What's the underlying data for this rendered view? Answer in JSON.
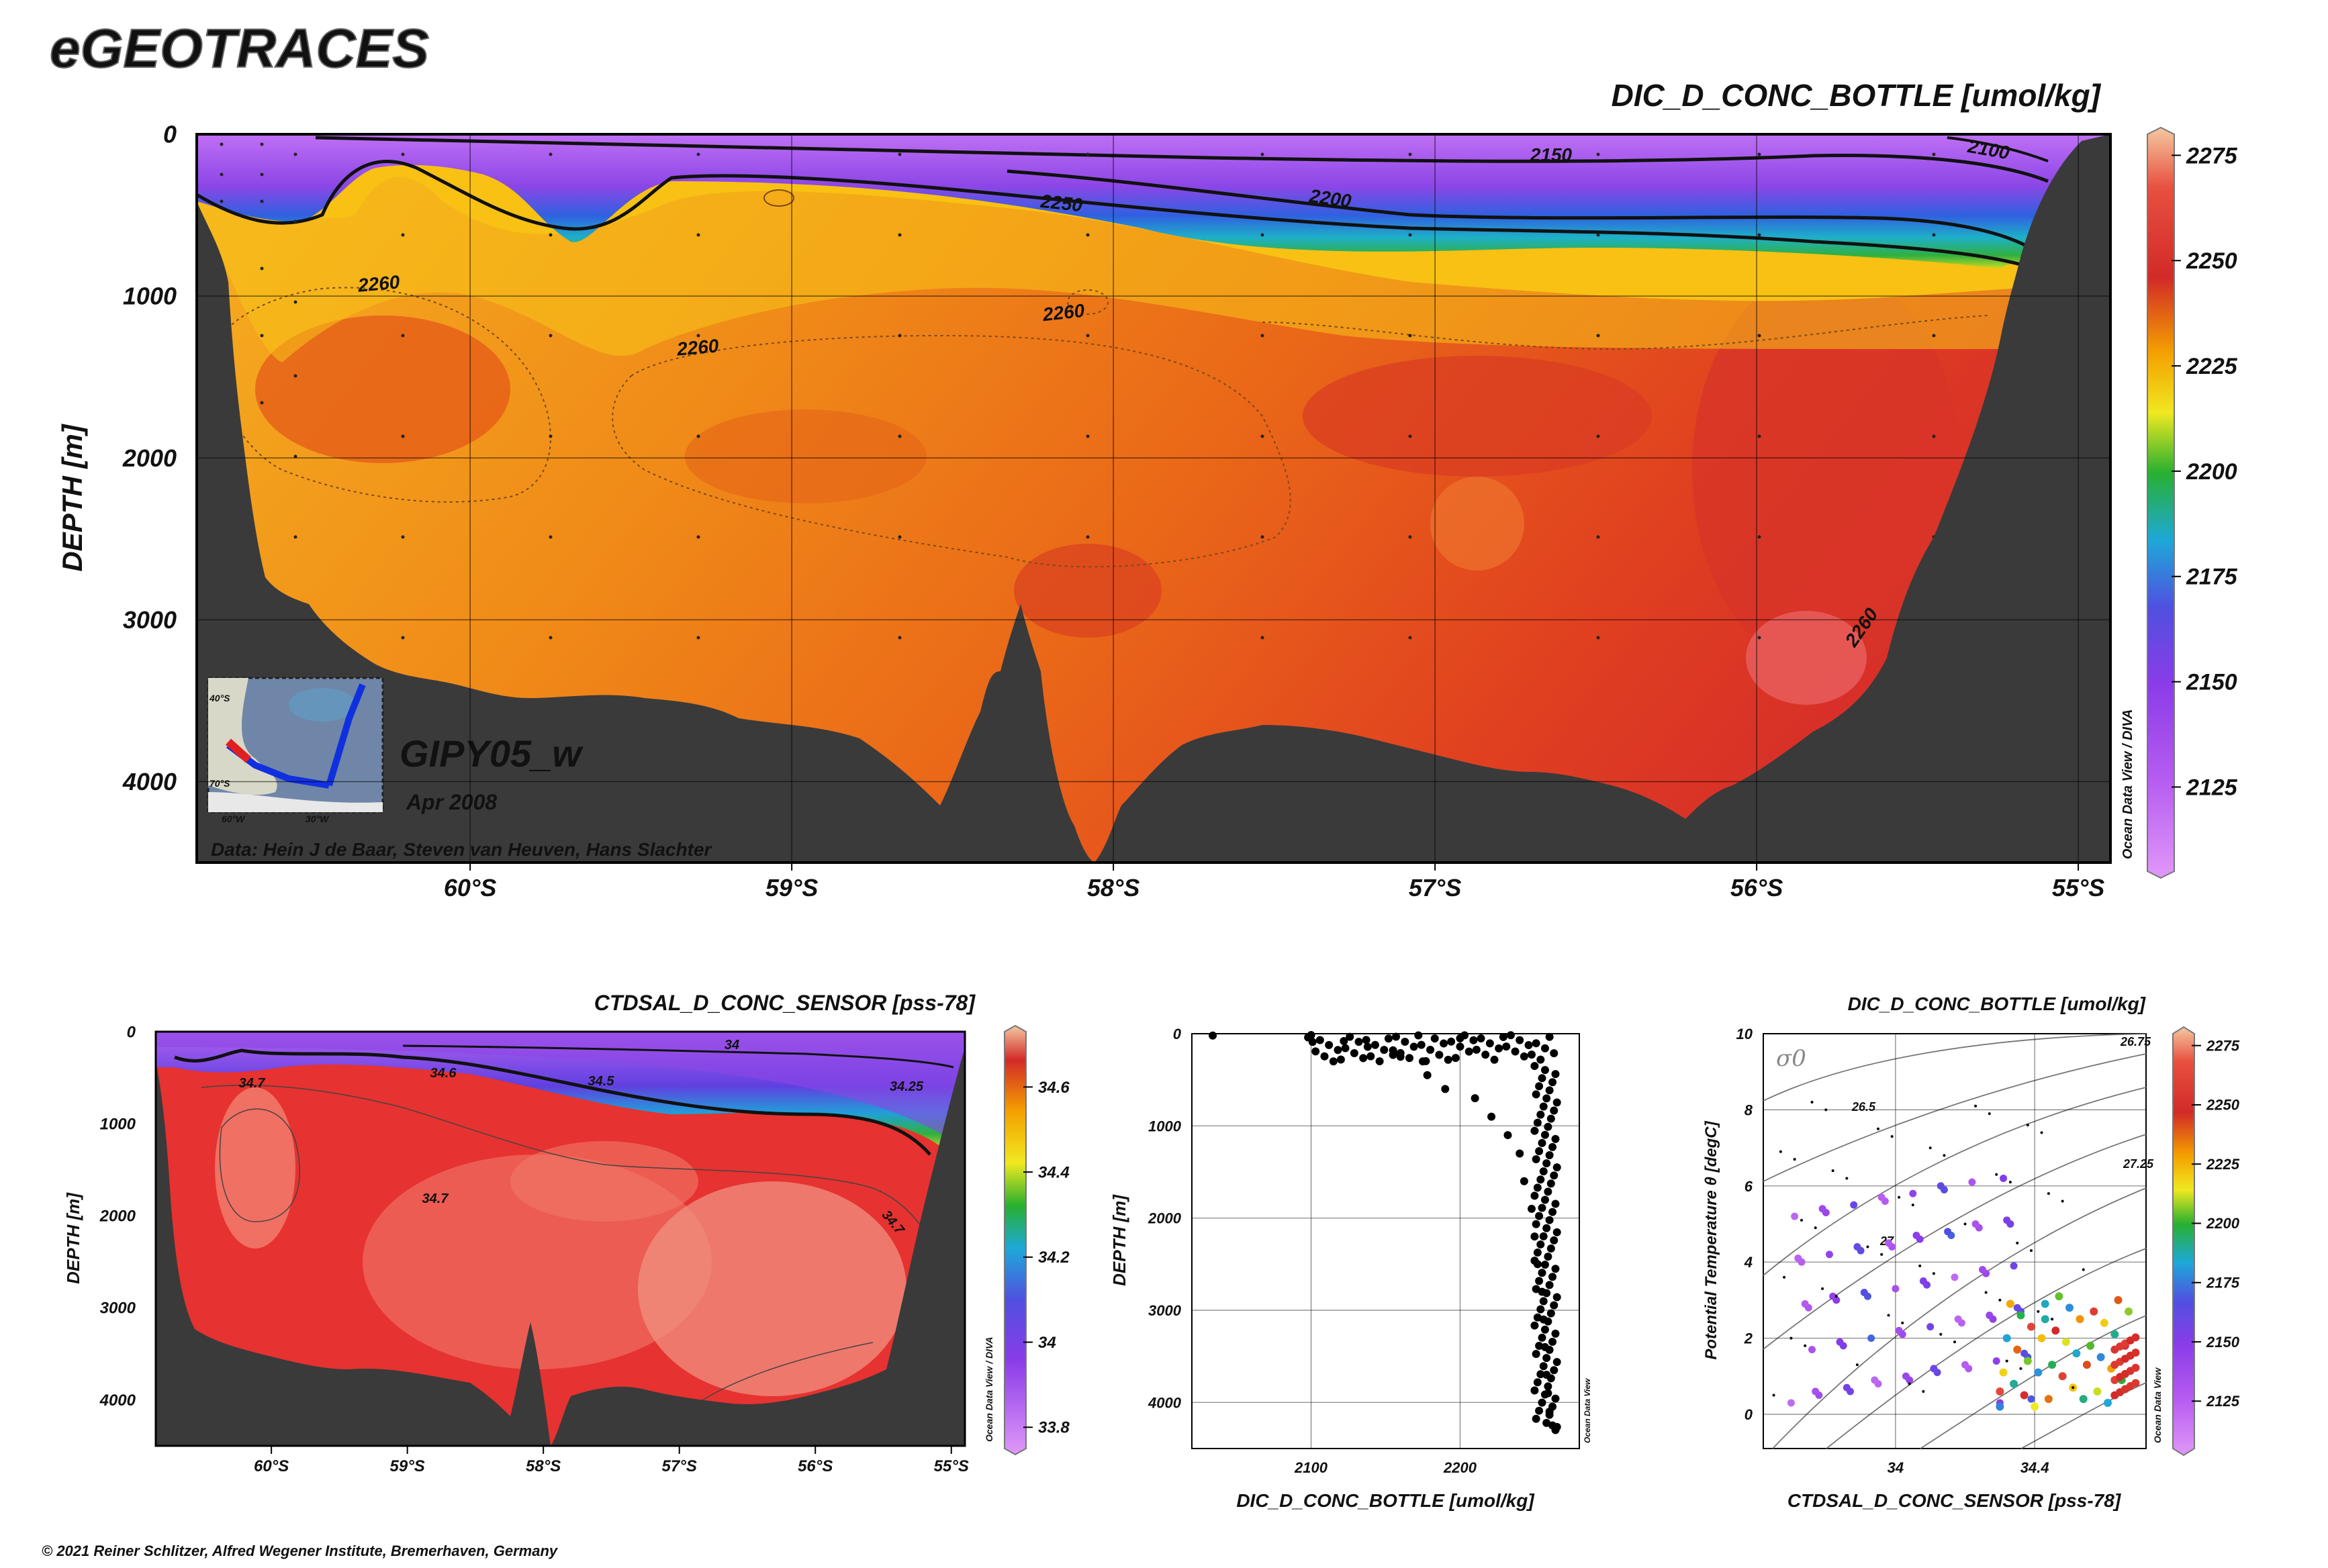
{
  "brand": "eGEOTRACES",
  "footer": "© 2021 Reiner Schlitzer, Alfred Wegener Institute, Bremerhaven, Germany",
  "chart_data": [
    {
      "type": "heatmap",
      "id": "main_section",
      "title": "DIC_D_CONC_BOTTLE [umol/kg]",
      "ylabel": "DEPTH [m]",
      "xticks": [
        "60°S",
        "59°S",
        "58°S",
        "57°S",
        "56°S",
        "55°S"
      ],
      "xtick_values": [
        -60,
        -59,
        -58,
        -57,
        -56,
        -55
      ],
      "xlim": [
        -60.85,
        -54.9
      ],
      "yticks": [
        "0",
        "1000",
        "2000",
        "3000",
        "4000"
      ],
      "ytick_values": [
        0,
        1000,
        2000,
        3000,
        4000
      ],
      "ylim": [
        0,
        4500
      ],
      "contour_labels": [
        "2150",
        "2100",
        "2200",
        "2250",
        "2260",
        "2260",
        "2260",
        "2260"
      ],
      "colorbar": {
        "ticks": [
          "2275",
          "2250",
          "2225",
          "2200",
          "2175",
          "2150",
          "2125"
        ],
        "tick_values": [
          2275,
          2250,
          2225,
          2200,
          2175,
          2150,
          2125
        ],
        "range": [
          2105,
          2280
        ]
      },
      "odv_credit": "Ocean Data View / DIVA",
      "inset": {
        "cruise": "GIPY05_w",
        "date": "Apr 2008",
        "lat_labels": [
          "40°S",
          "70°S"
        ],
        "lon_labels": [
          "60°W",
          "30°W"
        ]
      },
      "credit": "Data: Hein J de Baar, Steven van Heuven, Hans Slachter"
    },
    {
      "type": "heatmap",
      "id": "salinity_section",
      "title": "CTDSAL_D_CONC_SENSOR [pss-78]",
      "ylabel": "DEPTH [m]",
      "xticks": [
        "60°S",
        "59°S",
        "58°S",
        "57°S",
        "56°S",
        "55°S"
      ],
      "xtick_values": [
        -60,
        -59,
        -58,
        -57,
        -56,
        -55
      ],
      "xlim": [
        -60.85,
        -54.9
      ],
      "yticks": [
        "0",
        "1000",
        "2000",
        "3000",
        "4000"
      ],
      "ytick_values": [
        0,
        1000,
        2000,
        3000,
        4000
      ],
      "ylim": [
        0,
        4500
      ],
      "contour_labels": [
        "34",
        "34.25",
        "34.6",
        "34.5",
        "34.7",
        "34.7",
        "34.7"
      ],
      "colorbar": {
        "ticks": [
          "34.6",
          "34.4",
          "34.2",
          "34",
          "33.8"
        ],
        "tick_values": [
          34.6,
          34.4,
          34.2,
          34.0,
          33.8
        ],
        "range": [
          33.75,
          34.73
        ]
      },
      "odv_credit": "Ocean Data View / DIVA"
    },
    {
      "type": "scatter",
      "id": "profile",
      "xlabel": "DIC_D_CONC_BOTTLE [umol/kg]",
      "ylabel": "DEPTH [m]",
      "xticks": [
        "2100",
        "2200"
      ],
      "xtick_values": [
        2100,
        2200
      ],
      "xlim": [
        2020,
        2280
      ],
      "yticks": [
        "0",
        "1000",
        "2000",
        "3000",
        "4000"
      ],
      "ytick_values": [
        0,
        1000,
        2000,
        3000,
        4000
      ],
      "ylim": [
        0,
        4500
      ],
      "y_inverted": true,
      "odv_credit": "Ocean Data View",
      "points_note_x": [
        2034,
        2098,
        2122,
        2155,
        2160,
        2175,
        2178,
        2190,
        2200,
        2210,
        2221,
        2232,
        2240,
        2243,
        2248,
        2250,
        2252,
        2255,
        2256,
        2257,
        2258,
        2259,
        2260,
        2262,
        2264
      ],
      "points_note_y": [
        20,
        40,
        80,
        180,
        250,
        300,
        450,
        600,
        50,
        700,
        900,
        1100,
        1300,
        1600,
        1900,
        2200,
        2500,
        2800,
        3100,
        3400,
        3700,
        3900,
        4100,
        4250,
        4300
      ]
    },
    {
      "type": "scatter",
      "id": "ts_diagram",
      "title": "DIC_D_CONC_BOTTLE [umol/kg]",
      "xlabel": "CTDSAL_D_CONC_SENSOR [pss-78]",
      "ylabel": "Potential Temperature θ [degC]",
      "xticks": [
        "34",
        "34.4"
      ],
      "xtick_values": [
        34.0,
        34.4
      ],
      "xlim": [
        33.62,
        34.72
      ],
      "yticks": [
        "0",
        "2",
        "4",
        "6",
        "8",
        "10"
      ],
      "ytick_values": [
        0,
        2,
        4,
        6,
        8,
        10
      ],
      "ylim": [
        -0.9,
        10
      ],
      "sigma_label": "σ0",
      "isopycnal_labels": [
        "26.75",
        "26.5",
        "27",
        "27.25"
      ],
      "colorbar": {
        "ticks": [
          "2275",
          "2250",
          "2225",
          "2200",
          "2175",
          "2150",
          "2125"
        ],
        "tick_values": [
          2275,
          2250,
          2225,
          2200,
          2175,
          2150,
          2125
        ],
        "range": [
          2105,
          2280
        ]
      },
      "odv_credit": "Ocean Data View"
    }
  ]
}
